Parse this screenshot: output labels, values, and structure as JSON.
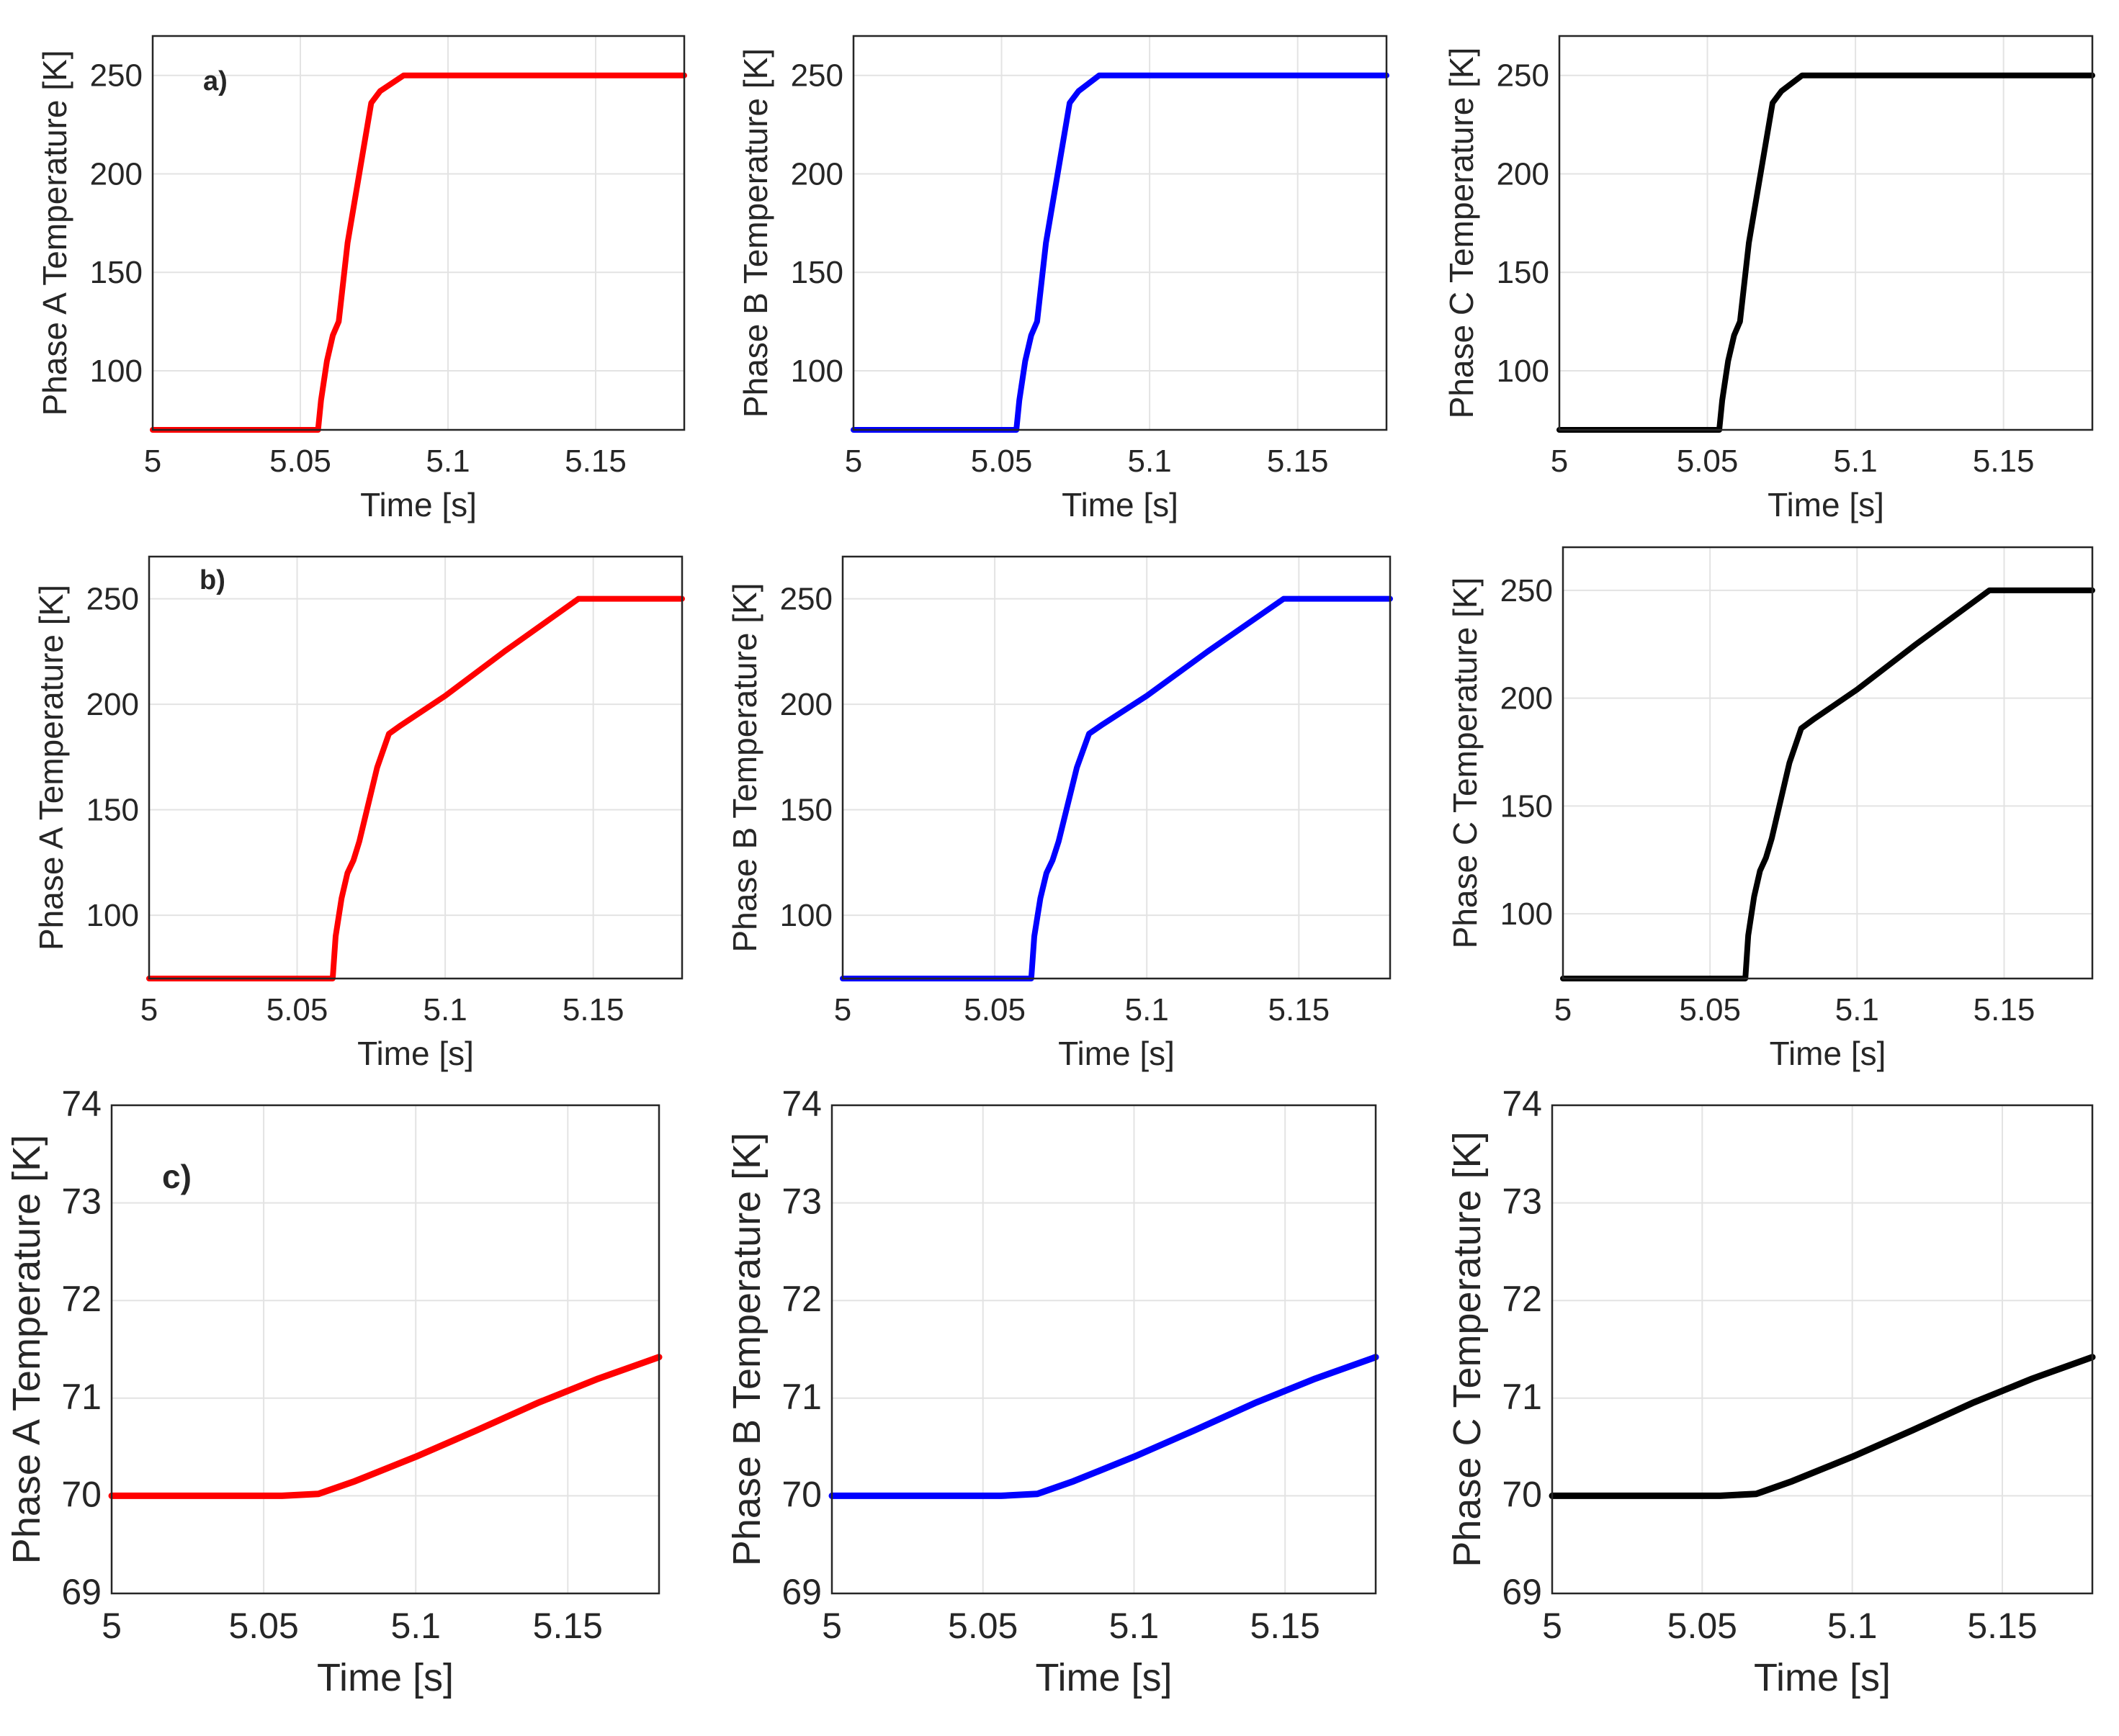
{
  "chart_data": [
    {
      "type": "line",
      "panel_label": "a)",
      "title": "",
      "xlabel": "Time [s]",
      "ylabel": "Phase A Temperature [K]",
      "xlim": [
        5,
        5.18
      ],
      "ylim": [
        70,
        270
      ],
      "xticks": [
        "5",
        "5.05",
        "5.1",
        "5.15"
      ],
      "yticks": [
        "100",
        "150",
        "200",
        "250"
      ],
      "grid": true,
      "color": "#ff0000",
      "series": [
        {
          "name": "Phase A",
          "x": [
            5,
            5.056,
            5.057,
            5.059,
            5.061,
            5.063,
            5.066,
            5.074,
            5.077,
            5.085,
            5.18
          ],
          "y": [
            70,
            70,
            85,
            105,
            118,
            125,
            165,
            236,
            242,
            250,
            250
          ]
        }
      ]
    },
    {
      "type": "line",
      "panel_label": "",
      "title": "",
      "xlabel": "Time [s]",
      "ylabel": "Phase B Temperature [K]",
      "xlim": [
        5,
        5.18
      ],
      "ylim": [
        70,
        270
      ],
      "xticks": [
        "5",
        "5.05",
        "5.1",
        "5.15"
      ],
      "yticks": [
        "100",
        "150",
        "200",
        "250"
      ],
      "grid": true,
      "color": "#0000ff",
      "series": [
        {
          "name": "Phase B",
          "x": [
            5,
            5.055,
            5.056,
            5.058,
            5.06,
            5.062,
            5.065,
            5.073,
            5.076,
            5.083,
            5.18
          ],
          "y": [
            70,
            70,
            85,
            105,
            118,
            125,
            165,
            236,
            242,
            250,
            250
          ]
        }
      ]
    },
    {
      "type": "line",
      "panel_label": "",
      "title": "",
      "xlabel": "Time [s]",
      "ylabel": "Phase C Temperature [K]",
      "xlim": [
        5,
        5.18
      ],
      "ylim": [
        70,
        270
      ],
      "xticks": [
        "5",
        "5.05",
        "5.1",
        "5.15"
      ],
      "yticks": [
        "100",
        "150",
        "200",
        "250"
      ],
      "grid": true,
      "color": "#000000",
      "series": [
        {
          "name": "Phase C",
          "x": [
            5,
            5.054,
            5.055,
            5.057,
            5.059,
            5.061,
            5.064,
            5.072,
            5.075,
            5.082,
            5.18
          ],
          "y": [
            70,
            70,
            85,
            105,
            118,
            125,
            165,
            236,
            242,
            250,
            250
          ]
        }
      ]
    },
    {
      "type": "line",
      "panel_label": "b)",
      "title": "",
      "xlabel": "Time [s]",
      "ylabel": "Phase A Temperature [K]",
      "xlim": [
        5,
        5.18
      ],
      "ylim": [
        70,
        270
      ],
      "xticks": [
        "5",
        "5.05",
        "5.1",
        "5.15"
      ],
      "yticks": [
        "100",
        "150",
        "200",
        "250"
      ],
      "grid": true,
      "color": "#ff0000",
      "series": [
        {
          "name": "Phase A",
          "x": [
            5,
            5.062,
            5.063,
            5.065,
            5.067,
            5.069,
            5.071,
            5.077,
            5.081,
            5.085,
            5.1,
            5.12,
            5.145,
            5.18
          ],
          "y": [
            70,
            70,
            90,
            108,
            120,
            126,
            135,
            170,
            186,
            190,
            204,
            225,
            250,
            250
          ]
        }
      ]
    },
    {
      "type": "line",
      "panel_label": "",
      "title": "",
      "xlabel": "Time [s]",
      "ylabel": "Phase B Temperature [K]",
      "xlim": [
        5,
        5.18
      ],
      "ylim": [
        70,
        270
      ],
      "xticks": [
        "5",
        "5.05",
        "5.1",
        "5.15"
      ],
      "yticks": [
        "100",
        "150",
        "200",
        "250"
      ],
      "grid": true,
      "color": "#0000ff",
      "series": [
        {
          "name": "Phase B",
          "x": [
            5,
            5.062,
            5.063,
            5.065,
            5.067,
            5.069,
            5.071,
            5.077,
            5.081,
            5.085,
            5.1,
            5.12,
            5.145,
            5.18
          ],
          "y": [
            70,
            70,
            90,
            108,
            120,
            126,
            135,
            170,
            186,
            190,
            204,
            225,
            250,
            250
          ]
        }
      ]
    },
    {
      "type": "line",
      "panel_label": "",
      "title": "",
      "xlabel": "Time [s]",
      "ylabel": "Phase C Temperature [K]",
      "xlim": [
        5,
        5.18
      ],
      "ylim": [
        70,
        270
      ],
      "xticks": [
        "5",
        "5.05",
        "5.1",
        "5.15"
      ],
      "yticks": [
        "100",
        "150",
        "200",
        "250"
      ],
      "grid": true,
      "color": "#000000",
      "series": [
        {
          "name": "Phase C",
          "x": [
            5,
            5.062,
            5.063,
            5.065,
            5.067,
            5.069,
            5.071,
            5.077,
            5.081,
            5.085,
            5.1,
            5.12,
            5.145,
            5.18
          ],
          "y": [
            70,
            70,
            90,
            108,
            120,
            126,
            135,
            170,
            186,
            190,
            204,
            225,
            250,
            250
          ]
        }
      ]
    },
    {
      "type": "line",
      "panel_label": "c)",
      "title": "",
      "xlabel": "Time [s]",
      "ylabel": "Phase A Temperature [K]",
      "xlim": [
        5,
        5.18
      ],
      "ylim": [
        69,
        74
      ],
      "xticks": [
        "5",
        "5.05",
        "5.1",
        "5.15"
      ],
      "yticks": [
        "69",
        "70",
        "71",
        "72",
        "73",
        "74"
      ],
      "grid": true,
      "color": "#ff0000",
      "series": [
        {
          "name": "Phase A",
          "x": [
            5,
            5.056,
            5.068,
            5.08,
            5.1,
            5.12,
            5.14,
            5.16,
            5.18
          ],
          "y": [
            70,
            70,
            70.02,
            70.15,
            70.4,
            70.67,
            70.95,
            71.2,
            71.42
          ]
        }
      ]
    },
    {
      "type": "line",
      "panel_label": "",
      "title": "",
      "xlabel": "Time [s]",
      "ylabel": "Phase B Temperature [K]",
      "xlim": [
        5,
        5.18
      ],
      "ylim": [
        69,
        74
      ],
      "xticks": [
        "5",
        "5.05",
        "5.1",
        "5.15"
      ],
      "yticks": [
        "69",
        "70",
        "71",
        "72",
        "73",
        "74"
      ],
      "grid": true,
      "color": "#0000ff",
      "series": [
        {
          "name": "Phase B",
          "x": [
            5,
            5.056,
            5.068,
            5.08,
            5.1,
            5.12,
            5.14,
            5.16,
            5.18
          ],
          "y": [
            70,
            70,
            70.02,
            70.15,
            70.4,
            70.67,
            70.95,
            71.2,
            71.42
          ]
        }
      ]
    },
    {
      "type": "line",
      "panel_label": "",
      "title": "",
      "xlabel": "Time [s]",
      "ylabel": "Phase C Temperature [K]",
      "xlim": [
        5,
        5.18
      ],
      "ylim": [
        69,
        74
      ],
      "xticks": [
        "5",
        "5.05",
        "5.1",
        "5.15"
      ],
      "yticks": [
        "69",
        "70",
        "71",
        "72",
        "73",
        "74"
      ],
      "grid": true,
      "color": "#000000",
      "series": [
        {
          "name": "Phase C",
          "x": [
            5,
            5.056,
            5.068,
            5.08,
            5.1,
            5.12,
            5.14,
            5.16,
            5.18
          ],
          "y": [
            70,
            70,
            70.02,
            70.15,
            70.4,
            70.67,
            70.95,
            71.2,
            71.42
          ]
        }
      ]
    }
  ]
}
